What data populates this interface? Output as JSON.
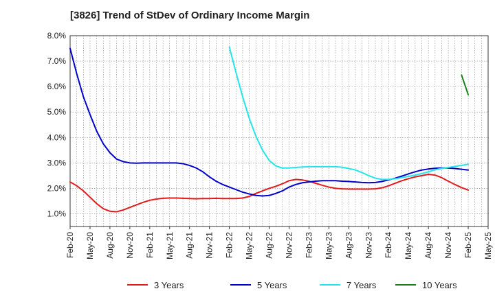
{
  "chart_data": {
    "type": "line",
    "title": "[3826]  Trend of StDev of Ordinary Income Margin",
    "xlabel": "",
    "ylabel": "",
    "ylim": [
      0.5,
      8.0
    ],
    "yticks": [
      "1.0%",
      "2.0%",
      "3.0%",
      "4.0%",
      "5.0%",
      "6.0%",
      "7.0%",
      "8.0%"
    ],
    "ytick_values": [
      1,
      2,
      3,
      4,
      5,
      6,
      7,
      8
    ],
    "x_start": "Feb-20",
    "xticks": [
      "Feb-20",
      "May-20",
      "Aug-20",
      "Nov-20",
      "Feb-21",
      "May-21",
      "Aug-21",
      "Nov-21",
      "Feb-22",
      "May-22",
      "Aug-22",
      "Nov-22",
      "Feb-23",
      "May-23",
      "Aug-23",
      "Nov-23",
      "Feb-24",
      "May-24",
      "Aug-24",
      "Nov-24",
      "Feb-25",
      "May-25"
    ],
    "grid": true,
    "legend_position": "bottom",
    "series": [
      {
        "name": "3 Years",
        "color": "#e31a1c",
        "x": [
          "Feb-20",
          "Mar-20",
          "Apr-20",
          "May-20",
          "Jun-20",
          "Jul-20",
          "Aug-20",
          "Sep-20",
          "Oct-20",
          "Nov-20",
          "Dec-20",
          "Jan-21",
          "Feb-21",
          "Mar-21",
          "Apr-21",
          "May-21",
          "Jun-21",
          "Jul-21",
          "Aug-21",
          "Sep-21",
          "Oct-21",
          "Nov-21",
          "Dec-21",
          "Jan-22",
          "Feb-22",
          "Mar-22",
          "Apr-22",
          "May-22",
          "Jun-22",
          "Jul-22",
          "Aug-22",
          "Sep-22",
          "Oct-22",
          "Nov-22",
          "Dec-22",
          "Jan-23",
          "Feb-23",
          "Mar-23",
          "Apr-23",
          "May-23",
          "Jun-23",
          "Jul-23",
          "Aug-23",
          "Sep-23",
          "Oct-23",
          "Nov-23",
          "Dec-23",
          "Jan-24",
          "Feb-24",
          "Mar-24",
          "Apr-24",
          "May-24",
          "Jun-24",
          "Jul-24",
          "Aug-24",
          "Sep-24",
          "Oct-24",
          "Nov-24",
          "Dec-24",
          "Jan-25",
          "Feb-25"
        ],
        "values": [
          2.25,
          2.1,
          1.9,
          1.65,
          1.4,
          1.2,
          1.1,
          1.08,
          1.15,
          1.25,
          1.35,
          1.45,
          1.53,
          1.58,
          1.61,
          1.62,
          1.62,
          1.61,
          1.6,
          1.59,
          1.6,
          1.6,
          1.61,
          1.6,
          1.6,
          1.6,
          1.62,
          1.68,
          1.8,
          1.9,
          2.0,
          2.08,
          2.18,
          2.3,
          2.35,
          2.33,
          2.28,
          2.2,
          2.12,
          2.05,
          2.0,
          1.98,
          1.97,
          1.97,
          1.97,
          1.97,
          1.98,
          2.02,
          2.1,
          2.2,
          2.3,
          2.38,
          2.45,
          2.5,
          2.55,
          2.52,
          2.42,
          2.28,
          2.15,
          2.03,
          1.93
        ]
      },
      {
        "name": "5 Years",
        "color": "#0000cc",
        "x": [
          "Feb-20",
          "Mar-20",
          "Apr-20",
          "May-20",
          "Jun-20",
          "Jul-20",
          "Aug-20",
          "Sep-20",
          "Oct-20",
          "Nov-20",
          "Dec-20",
          "Jan-21",
          "Feb-21",
          "Mar-21",
          "Apr-21",
          "May-21",
          "Jun-21",
          "Jul-21",
          "Aug-21",
          "Sep-21",
          "Oct-21",
          "Nov-21",
          "Dec-21",
          "Jan-22",
          "Feb-22",
          "Mar-22",
          "Apr-22",
          "May-22",
          "Jun-22",
          "Jul-22",
          "Aug-22",
          "Sep-22",
          "Oct-22",
          "Nov-22",
          "Dec-22",
          "Jan-23",
          "Feb-23",
          "Mar-23",
          "Apr-23",
          "May-23",
          "Jun-23",
          "Jul-23",
          "Aug-23",
          "Sep-23",
          "Oct-23",
          "Nov-23",
          "Dec-23",
          "Jan-24",
          "Feb-24",
          "Mar-24",
          "Apr-24",
          "May-24",
          "Jun-24",
          "Jul-24",
          "Aug-24",
          "Sep-24",
          "Oct-24",
          "Nov-24",
          "Dec-24",
          "Jan-25",
          "Feb-25"
        ],
        "values": [
          7.5,
          6.5,
          5.6,
          4.9,
          4.25,
          3.75,
          3.4,
          3.15,
          3.05,
          3.0,
          2.99,
          3.0,
          3.0,
          3.0,
          3.0,
          3.0,
          3.0,
          2.97,
          2.9,
          2.8,
          2.65,
          2.45,
          2.28,
          2.15,
          2.05,
          1.95,
          1.85,
          1.78,
          1.72,
          1.7,
          1.72,
          1.8,
          1.9,
          2.05,
          2.15,
          2.22,
          2.25,
          2.28,
          2.3,
          2.3,
          2.3,
          2.28,
          2.27,
          2.25,
          2.23,
          2.22,
          2.23,
          2.27,
          2.33,
          2.4,
          2.48,
          2.57,
          2.65,
          2.72,
          2.76,
          2.79,
          2.8,
          2.8,
          2.78,
          2.75,
          2.72
        ]
      },
      {
        "name": "7 Years",
        "color": "#22e5ea",
        "x": [
          "Feb-22",
          "Mar-22",
          "Apr-22",
          "May-22",
          "Jun-22",
          "Jul-22",
          "Aug-22",
          "Sep-22",
          "Oct-22",
          "Nov-22",
          "Dec-22",
          "Jan-23",
          "Feb-23",
          "Mar-23",
          "Apr-23",
          "May-23",
          "Jun-23",
          "Jul-23",
          "Aug-23",
          "Sep-23",
          "Oct-23",
          "Nov-23",
          "Dec-23",
          "Jan-24",
          "Feb-24",
          "Mar-24",
          "Apr-24",
          "May-24",
          "Jun-24",
          "Jul-24",
          "Aug-24",
          "Sep-24",
          "Oct-24",
          "Nov-24",
          "Dec-24",
          "Jan-25",
          "Feb-25"
        ],
        "values": [
          7.55,
          6.55,
          5.6,
          4.75,
          4.05,
          3.5,
          3.1,
          2.88,
          2.8,
          2.8,
          2.82,
          2.84,
          2.85,
          2.85,
          2.85,
          2.85,
          2.85,
          2.83,
          2.78,
          2.72,
          2.62,
          2.5,
          2.4,
          2.35,
          2.35,
          2.38,
          2.42,
          2.47,
          2.52,
          2.58,
          2.65,
          2.73,
          2.78,
          2.82,
          2.86,
          2.9,
          2.95
        ]
      },
      {
        "name": "10 Years",
        "color": "#1a7f1a",
        "x": [
          "Jan-25",
          "Feb-25"
        ],
        "values": [
          6.45,
          5.68
        ]
      }
    ]
  }
}
